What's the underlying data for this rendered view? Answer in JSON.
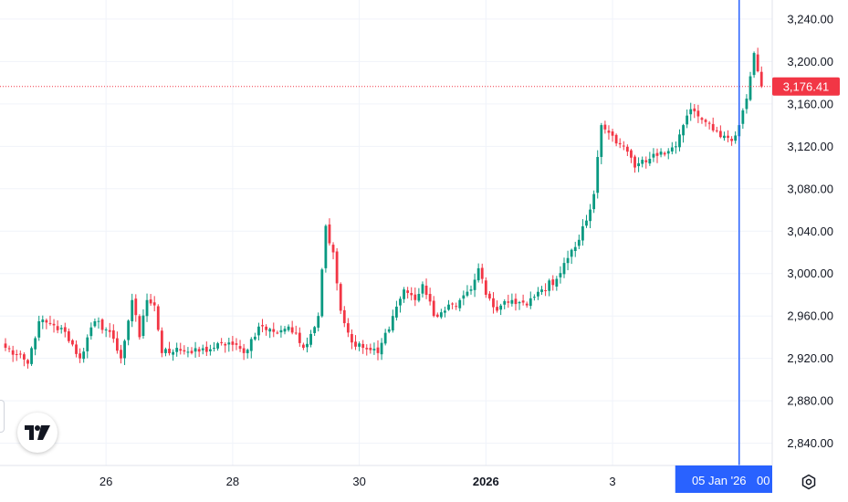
{
  "chart_data": {
    "type": "candlestick",
    "y_ticks": [
      "3,240.00",
      "3,200.00",
      "3,160.00",
      "3,120.00",
      "3,080.00",
      "3,040.00",
      "3,000.00",
      "2,960.00",
      "2,920.00",
      "2,880.00",
      "2,840.00"
    ],
    "y_tick_values": [
      3240,
      3200,
      3160,
      3120,
      3080,
      3040,
      3000,
      2960,
      2920,
      2880,
      2840
    ],
    "ylim": [
      2819,
      3258
    ],
    "x_ticks": [
      {
        "label": "26",
        "bold": false
      },
      {
        "label": "28",
        "bold": false
      },
      {
        "label": "30",
        "bold": false
      },
      {
        "label": "2026",
        "bold": true
      },
      {
        "label": "3",
        "bold": false
      }
    ],
    "last_price": 3176.41,
    "last_price_label": "3,176.41",
    "crosshair_label": "05 Jan '26",
    "crosshair_label_suffix": "00",
    "grid": true,
    "anchors": [
      [
        0,
        2930
      ],
      [
        6,
        2915
      ],
      [
        9,
        2955
      ],
      [
        16,
        2945
      ],
      [
        20,
        2920
      ],
      [
        24,
        2955
      ],
      [
        28,
        2945
      ],
      [
        31,
        2920
      ],
      [
        34,
        2975
      ],
      [
        36,
        2940
      ],
      [
        38,
        2975
      ],
      [
        40,
        2970
      ],
      [
        42,
        2925
      ],
      [
        46,
        2930
      ],
      [
        50,
        2925
      ],
      [
        56,
        2930
      ],
      [
        60,
        2935
      ],
      [
        64,
        2925
      ],
      [
        68,
        2950
      ],
      [
        72,
        2945
      ],
      [
        76,
        2950
      ],
      [
        80,
        2930
      ],
      [
        84,
        2960
      ],
      [
        86,
        3045
      ],
      [
        88,
        3020
      ],
      [
        90,
        2965
      ],
      [
        93,
        2935
      ],
      [
        96,
        2930
      ],
      [
        100,
        2925
      ],
      [
        104,
        2960
      ],
      [
        107,
        2985
      ],
      [
        110,
        2975
      ],
      [
        112,
        2990
      ],
      [
        115,
        2960
      ],
      [
        118,
        2965
      ],
      [
        122,
        2975
      ],
      [
        125,
        2985
      ],
      [
        127,
        3005
      ],
      [
        129,
        2980
      ],
      [
        132,
        2965
      ],
      [
        136,
        2975
      ],
      [
        140,
        2970
      ],
      [
        144,
        2985
      ],
      [
        148,
        2995
      ],
      [
        150,
        3010
      ],
      [
        153,
        3025
      ],
      [
        156,
        3050
      ],
      [
        158,
        3075
      ],
      [
        160,
        3140
      ],
      [
        163,
        3130
      ],
      [
        166,
        3120
      ],
      [
        169,
        3100
      ],
      [
        172,
        3105
      ],
      [
        176,
        3115
      ],
      [
        180,
        3120
      ],
      [
        182,
        3140
      ],
      [
        184,
        3155
      ],
      [
        187,
        3145
      ],
      [
        190,
        3135
      ],
      [
        193,
        3130
      ],
      [
        195,
        3125
      ],
      [
        197,
        3140
      ],
      [
        199,
        3165
      ],
      [
        201,
        3208
      ],
      [
        203,
        3176.41
      ]
    ]
  }
}
